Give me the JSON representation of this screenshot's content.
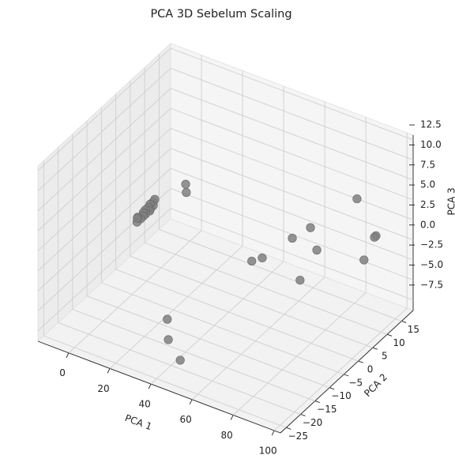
{
  "chart_data": {
    "type": "scatter3d",
    "title": "PCA 3D Sebelum Scaling",
    "xlabel": "PCA 1",
    "ylabel": "PCA 2",
    "zlabel": "PCA 3",
    "color": "#808080",
    "x": [
      0.5,
      1.0,
      0.0,
      0.7,
      0.3,
      1.5,
      -0.1,
      0.6,
      0.2,
      0.9,
      0.4,
      -0.3,
      0.1,
      0.5,
      1.3,
      11.7,
      12,
      88.6,
      82.1,
      76.5,
      85.2,
      65.1,
      60,
      94.6,
      94,
      92,
      83.5,
      41.5,
      42,
      47.8
    ],
    "y": [
      2.0,
      1.6,
      1.2,
      0.8,
      0.4,
      0.0,
      -0.4,
      -0.8,
      -1.3,
      -1.8,
      -2.4,
      -2.9,
      -3.4,
      -3.6,
      1.9,
      5.2,
      5.2,
      9.8,
      -1.7,
      -4,
      -1.7,
      -6.3,
      -6.3,
      12.1,
      12,
      9.8,
      -6.3,
      -22.4,
      -22.4,
      -22.4
    ],
    "z": [
      0.5,
      0.2,
      0.4,
      0.0,
      0.3,
      0.1,
      0.2,
      -0.1,
      0.2,
      0.0,
      -0.2,
      0.1,
      -0.3,
      0.3,
      0.9,
      2.7,
      1.7,
      6.8,
      6.4,
      5.3,
      3.9,
      2.5,
      1.6,
      2.0,
      1.8,
      -0.5,
      1.5,
      -2.1,
      -4.6,
      -6.6
    ],
    "xlim": [
      -15,
      103
    ],
    "ylim": [
      -27,
      19
    ],
    "zlim": [
      -8.8,
      13.1
    ],
    "xticks": [
      0,
      20,
      40,
      60,
      80,
      100
    ],
    "yticks": [
      {
        "value": -25,
        "label": "−25"
      },
      {
        "value": -20,
        "label": "−20"
      },
      {
        "value": -15,
        "label": "−15"
      },
      {
        "value": -10,
        "label": "−10"
      },
      {
        "value": -5,
        "label": "−5"
      },
      0,
      5,
      10,
      15
    ],
    "zticks": [
      {
        "value": -7.5,
        "label": "−7.5"
      },
      {
        "value": -5,
        "label": "−5.0"
      },
      {
        "value": -2.5,
        "label": "−2.5"
      },
      {
        "value": 0,
        "label": "0.0"
      },
      2.5,
      {
        "value": 5,
        "label": "5.0"
      },
      7.5,
      {
        "value": 10,
        "label": "10.0"
      },
      12.5
    ],
    "grid": true
  }
}
